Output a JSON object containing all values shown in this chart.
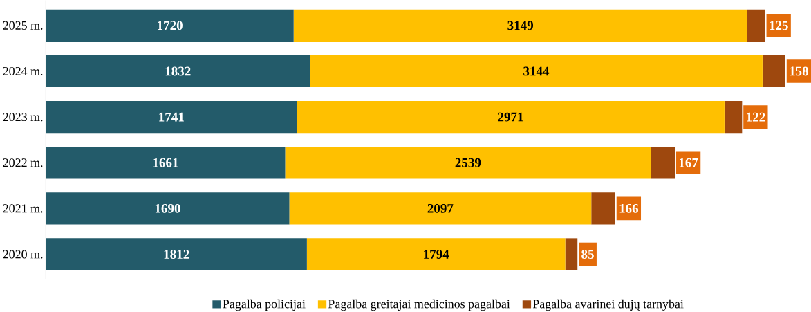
{
  "chart_data": {
    "type": "bar",
    "orientation": "horizontal",
    "stacked": true,
    "data_labels": true,
    "legend": "bottom",
    "categories": [
      "2025 m.",
      "2024 m.",
      "2023 m.",
      "2022 m.",
      "2021 m.",
      "2020 m."
    ],
    "series": [
      {
        "name": "Pagalba policijai",
        "color": "#235b6a",
        "values": [
          1720,
          1832,
          1741,
          1661,
          1690,
          1812
        ]
      },
      {
        "name": "Pagalba greitajai medicinos pagalbai",
        "color": "#ffc000",
        "values": [
          3149,
          3144,
          2971,
          2539,
          2097,
          1794
        ]
      },
      {
        "name": "Pagalba avarinei dujų tarnybai",
        "color": "#9e480e",
        "values": [
          125,
          158,
          122,
          167,
          166,
          85
        ]
      }
    ]
  }
}
